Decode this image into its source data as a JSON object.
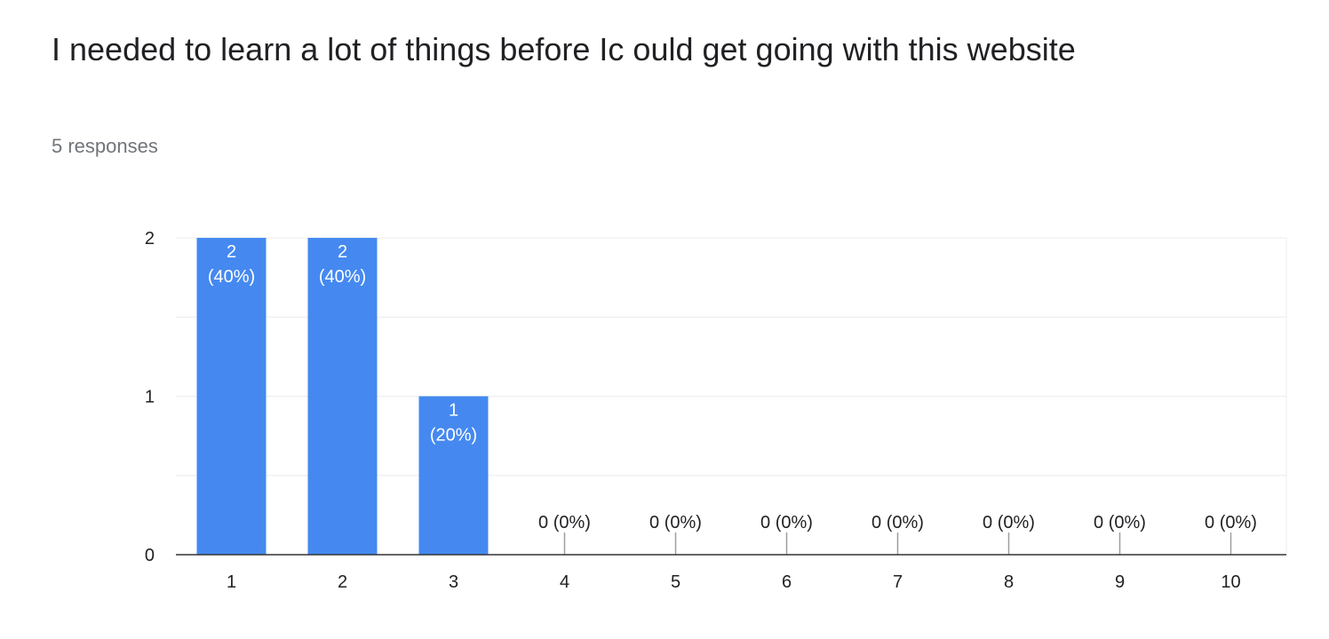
{
  "question": {
    "title": "I needed to learn a lot of things before Ic ould get going with this website",
    "responses": "5 responses"
  },
  "colors": {
    "bar": "#4589f0",
    "grid": "#ececec",
    "axis": "#333333",
    "text": "#202124"
  },
  "chart_data": {
    "type": "bar",
    "title": "",
    "xlabel": "",
    "ylabel": "",
    "categories": [
      "1",
      "2",
      "3",
      "4",
      "5",
      "6",
      "7",
      "8",
      "9",
      "10"
    ],
    "values": [
      2,
      2,
      1,
      0,
      0,
      0,
      0,
      0,
      0,
      0
    ],
    "data_labels": [
      "2 (40%)",
      "2 (40%)",
      "1 (20%)",
      "0 (0%)",
      "0 (0%)",
      "0 (0%)",
      "0 (0%)",
      "0 (0%)",
      "0 (0%)",
      "0 (0%)"
    ],
    "ylim": [
      0,
      2
    ],
    "y_ticks": [
      "0",
      "1",
      "2"
    ],
    "grid": true,
    "legend": "none"
  }
}
